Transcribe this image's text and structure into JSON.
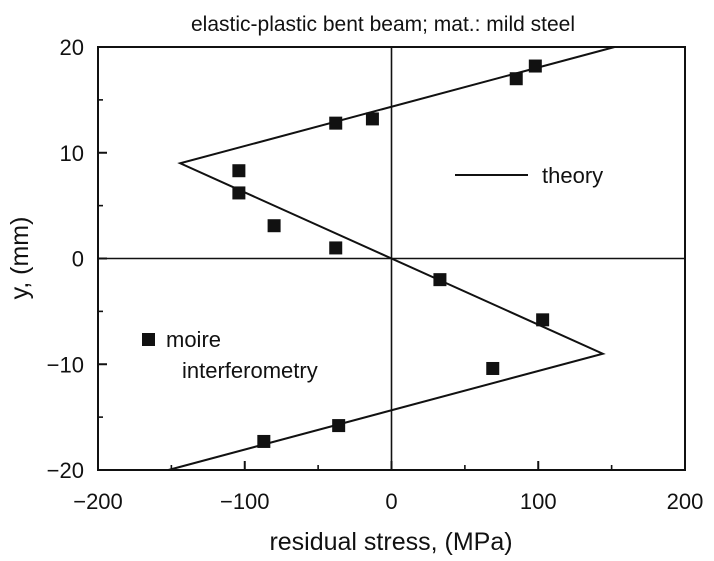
{
  "chart_data": {
    "type": "scatter",
    "title": "elastic-plastic bent beam; mat.: mild steel",
    "xlabel": "residual stress, (MPa)",
    "ylabel": "y, (mm)",
    "xlim": [
      -200,
      200
    ],
    "ylim": [
      -20,
      20
    ],
    "x_ticks": [
      -200,
      -100,
      0,
      100,
      200
    ],
    "x_tick_labels": [
      "−200",
      "−100",
      "0",
      "100",
      "200"
    ],
    "y_ticks": [
      -20,
      -10,
      0,
      10,
      20
    ],
    "y_tick_labels": [
      "−20",
      "−10",
      "0",
      "10",
      "20"
    ],
    "grid": false,
    "reference_lines": [
      "x = 0",
      "y = 0"
    ],
    "series": [
      {
        "name": "theory",
        "kind": "line",
        "points": [
          [
            -152,
            -20
          ],
          [
            144,
            -9
          ],
          [
            -144,
            9
          ],
          [
            152,
            20
          ]
        ]
      },
      {
        "name": "moire interferometry",
        "kind": "scatter",
        "marker": "square",
        "points": [
          [
            98,
            18.2
          ],
          [
            85,
            17.0
          ],
          [
            -38,
            12.8
          ],
          [
            -13,
            13.2
          ],
          [
            -104,
            8.3
          ],
          [
            -104,
            6.2
          ],
          [
            -80,
            3.1
          ],
          [
            -38,
            1.0
          ],
          [
            33,
            -2.0
          ],
          [
            103,
            -5.8
          ],
          [
            69,
            -10.4
          ],
          [
            -36,
            -15.8
          ],
          [
            -87,
            -17.3
          ]
        ]
      }
    ],
    "legend": [
      {
        "label": "theory",
        "marker": "line",
        "position": "right"
      },
      {
        "label_lines": [
          "moire",
          "interferometry"
        ],
        "marker": "square",
        "position": "left"
      }
    ],
    "colors": {
      "foreground": "#111111",
      "background": "#ffffff"
    }
  }
}
